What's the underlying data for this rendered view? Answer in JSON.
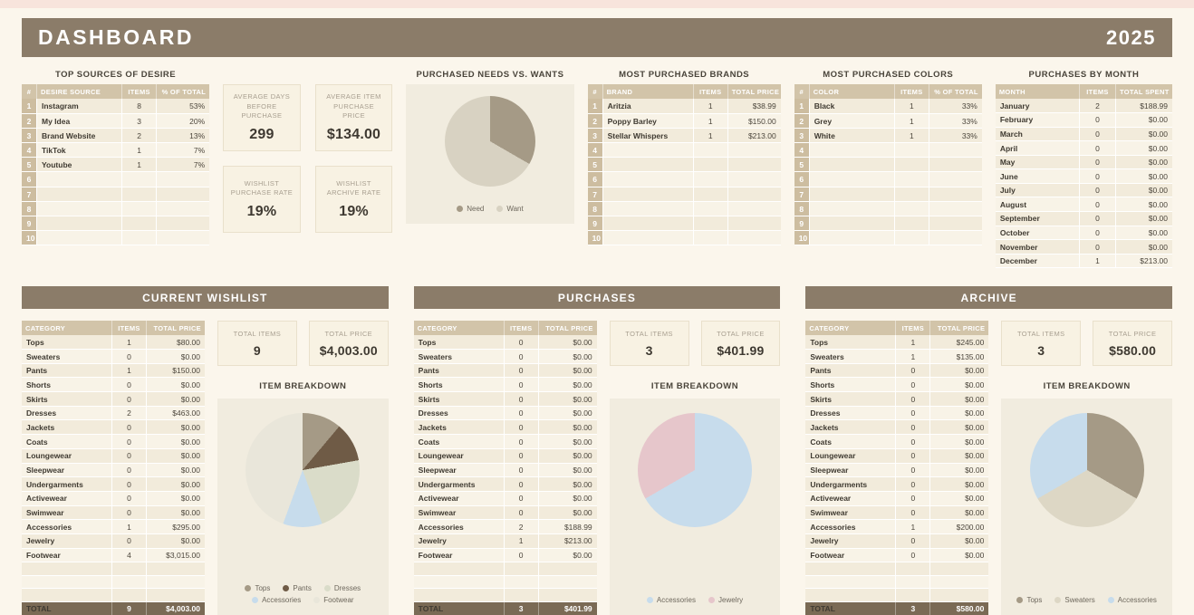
{
  "header": {
    "title": "DASHBOARD",
    "year": "2025"
  },
  "top_sources": {
    "title": "TOP SOURCES OF DESIRE",
    "columns": [
      "#",
      "DESIRE SOURCE",
      "ITEMS",
      "% OF TOTAL"
    ],
    "rows": [
      [
        "1",
        "Instagram",
        "8",
        "53%"
      ],
      [
        "2",
        "My Idea",
        "3",
        "20%"
      ],
      [
        "3",
        "Brand Website",
        "2",
        "13%"
      ],
      [
        "4",
        "TikTok",
        "1",
        "7%"
      ],
      [
        "5",
        "Youtube",
        "1",
        "7%"
      ],
      [
        "6",
        "",
        "",
        ""
      ],
      [
        "7",
        "",
        "",
        ""
      ],
      [
        "8",
        "",
        "",
        ""
      ],
      [
        "9",
        "",
        "",
        ""
      ],
      [
        "10",
        "",
        "",
        ""
      ]
    ]
  },
  "summary_stats": [
    {
      "label": "AVERAGE DAYS BEFORE PURCHASE",
      "value": "299"
    },
    {
      "label": "AVERAGE ITEM PURCHASE PRICE",
      "value": "$134.00"
    },
    {
      "label": "WISHLIST PURCHASE RATE",
      "value": "19%"
    },
    {
      "label": "WISHLIST ARCHIVE RATE",
      "value": "19%"
    }
  ],
  "brands": {
    "title": "MOST PURCHASED BRANDS",
    "columns": [
      "#",
      "BRAND",
      "ITEMS",
      "TOTAL PRICE"
    ],
    "rows": [
      [
        "1",
        "Aritzia",
        "1",
        "$38.99"
      ],
      [
        "2",
        "Poppy Barley",
        "1",
        "$150.00"
      ],
      [
        "3",
        "Stellar Whispers",
        "1",
        "$213.00"
      ],
      [
        "4",
        "",
        "",
        ""
      ],
      [
        "5",
        "",
        "",
        ""
      ],
      [
        "6",
        "",
        "",
        ""
      ],
      [
        "7",
        "",
        "",
        ""
      ],
      [
        "8",
        "",
        "",
        ""
      ],
      [
        "9",
        "",
        "",
        ""
      ],
      [
        "10",
        "",
        "",
        ""
      ]
    ]
  },
  "colors_table": {
    "title": "MOST PURCHASED COLORS",
    "columns": [
      "#",
      "COLOR",
      "ITEMS",
      "% OF TOTAL"
    ],
    "rows": [
      [
        "1",
        "Black",
        "1",
        "33%"
      ],
      [
        "2",
        "Grey",
        "1",
        "33%"
      ],
      [
        "3",
        "White",
        "1",
        "33%"
      ],
      [
        "4",
        "",
        "",
        ""
      ],
      [
        "5",
        "",
        "",
        ""
      ],
      [
        "6",
        "",
        "",
        ""
      ],
      [
        "7",
        "",
        "",
        ""
      ],
      [
        "8",
        "",
        "",
        ""
      ],
      [
        "9",
        "",
        "",
        ""
      ],
      [
        "10",
        "",
        "",
        ""
      ]
    ]
  },
  "months": {
    "title": "PURCHASES BY MONTH",
    "columns": [
      "MONTH",
      "ITEMS",
      "TOTAL SPENT"
    ],
    "rows": [
      [
        "January",
        "2",
        "$188.99"
      ],
      [
        "February",
        "0",
        "$0.00"
      ],
      [
        "March",
        "0",
        "$0.00"
      ],
      [
        "April",
        "0",
        "$0.00"
      ],
      [
        "May",
        "0",
        "$0.00"
      ],
      [
        "June",
        "0",
        "$0.00"
      ],
      [
        "July",
        "0",
        "$0.00"
      ],
      [
        "August",
        "0",
        "$0.00"
      ],
      [
        "September",
        "0",
        "$0.00"
      ],
      [
        "October",
        "0",
        "$0.00"
      ],
      [
        "November",
        "0",
        "$0.00"
      ],
      [
        "December",
        "1",
        "$213.00"
      ]
    ]
  },
  "panels": [
    {
      "title": "CURRENT WISHLIST",
      "columns": [
        "CATEGORY",
        "ITEMS",
        "TOTAL PRICE"
      ],
      "rows": [
        [
          "Tops",
          "1",
          "$80.00"
        ],
        [
          "Sweaters",
          "0",
          "$0.00"
        ],
        [
          "Pants",
          "1",
          "$150.00"
        ],
        [
          "Shorts",
          "0",
          "$0.00"
        ],
        [
          "Skirts",
          "0",
          "$0.00"
        ],
        [
          "Dresses",
          "2",
          "$463.00"
        ],
        [
          "Jackets",
          "0",
          "$0.00"
        ],
        [
          "Coats",
          "0",
          "$0.00"
        ],
        [
          "Loungewear",
          "0",
          "$0.00"
        ],
        [
          "Sleepwear",
          "0",
          "$0.00"
        ],
        [
          "Undergarments",
          "0",
          "$0.00"
        ],
        [
          "Activewear",
          "0",
          "$0.00"
        ],
        [
          "Swimwear",
          "0",
          "$0.00"
        ],
        [
          "Accessories",
          "1",
          "$295.00"
        ],
        [
          "Jewelry",
          "0",
          "$0.00"
        ],
        [
          "Footwear",
          "4",
          "$3,015.00"
        ],
        [
          "",
          "",
          ""
        ],
        [
          "",
          "",
          ""
        ],
        [
          "",
          "",
          ""
        ]
      ],
      "total": [
        "TOTAL",
        "9",
        "$4,003.00"
      ],
      "stats": [
        {
          "label": "TOTAL ITEMS",
          "value": "9"
        },
        {
          "label": "TOTAL PRICE",
          "value": "$4,003.00"
        }
      ],
      "breakdown_title": "ITEM BREAKDOWN"
    },
    {
      "title": "PURCHASES",
      "columns": [
        "CATEGORY",
        "ITEMS",
        "TOTAL PRICE"
      ],
      "rows": [
        [
          "Tops",
          "0",
          "$0.00"
        ],
        [
          "Sweaters",
          "0",
          "$0.00"
        ],
        [
          "Pants",
          "0",
          "$0.00"
        ],
        [
          "Shorts",
          "0",
          "$0.00"
        ],
        [
          "Skirts",
          "0",
          "$0.00"
        ],
        [
          "Dresses",
          "0",
          "$0.00"
        ],
        [
          "Jackets",
          "0",
          "$0.00"
        ],
        [
          "Coats",
          "0",
          "$0.00"
        ],
        [
          "Loungewear",
          "0",
          "$0.00"
        ],
        [
          "Sleepwear",
          "0",
          "$0.00"
        ],
        [
          "Undergarments",
          "0",
          "$0.00"
        ],
        [
          "Activewear",
          "0",
          "$0.00"
        ],
        [
          "Swimwear",
          "0",
          "$0.00"
        ],
        [
          "Accessories",
          "2",
          "$188.99"
        ],
        [
          "Jewelry",
          "1",
          "$213.00"
        ],
        [
          "Footwear",
          "0",
          "$0.00"
        ],
        [
          "",
          "",
          ""
        ],
        [
          "",
          "",
          ""
        ],
        [
          "",
          "",
          ""
        ]
      ],
      "total": [
        "TOTAL",
        "3",
        "$401.99"
      ],
      "stats": [
        {
          "label": "TOTAL ITEMS",
          "value": "3"
        },
        {
          "label": "TOTAL PRICE",
          "value": "$401.99"
        }
      ],
      "breakdown_title": "ITEM BREAKDOWN"
    },
    {
      "title": "ARCHIVE",
      "columns": [
        "CATEGORY",
        "ITEMS",
        "TOTAL PRICE"
      ],
      "rows": [
        [
          "Tops",
          "1",
          "$245.00"
        ],
        [
          "Sweaters",
          "1",
          "$135.00"
        ],
        [
          "Pants",
          "0",
          "$0.00"
        ],
        [
          "Shorts",
          "0",
          "$0.00"
        ],
        [
          "Skirts",
          "0",
          "$0.00"
        ],
        [
          "Dresses",
          "0",
          "$0.00"
        ],
        [
          "Jackets",
          "0",
          "$0.00"
        ],
        [
          "Coats",
          "0",
          "$0.00"
        ],
        [
          "Loungewear",
          "0",
          "$0.00"
        ],
        [
          "Sleepwear",
          "0",
          "$0.00"
        ],
        [
          "Undergarments",
          "0",
          "$0.00"
        ],
        [
          "Activewear",
          "0",
          "$0.00"
        ],
        [
          "Swimwear",
          "0",
          "$0.00"
        ],
        [
          "Accessories",
          "1",
          "$200.00"
        ],
        [
          "Jewelry",
          "0",
          "$0.00"
        ],
        [
          "Footwear",
          "0",
          "$0.00"
        ],
        [
          "",
          "",
          ""
        ],
        [
          "",
          "",
          ""
        ],
        [
          "",
          "",
          ""
        ]
      ],
      "total": [
        "TOTAL",
        "3",
        "$580.00"
      ],
      "stats": [
        {
          "label": "TOTAL ITEMS",
          "value": "3"
        },
        {
          "label": "TOTAL PRICE",
          "value": "$580.00"
        }
      ],
      "breakdown_title": "ITEM BREAKDOWN"
    }
  ],
  "chart_data": [
    {
      "type": "pie",
      "title": "PURCHASED NEEDS VS. WANTS",
      "labels": [
        "Need",
        "Want"
      ],
      "values": [
        1,
        2
      ],
      "percentages": [
        "33%",
        "67%"
      ],
      "colors": [
        "#a59a86",
        "#d8d2c2"
      ],
      "legend_position": "bottom"
    },
    {
      "type": "pie",
      "title": "ITEM BREAKDOWN",
      "panel": "CURRENT WISHLIST",
      "labels": [
        "Tops",
        "Pants",
        "Dresses",
        "Accessories",
        "Footwear"
      ],
      "values": [
        1,
        1,
        2,
        1,
        4
      ],
      "colors": [
        "#a59a86",
        "#6f5b46",
        "#dadcc9",
        "#c7dcec",
        "#e9e6da"
      ],
      "legend_position": "bottom"
    },
    {
      "type": "pie",
      "title": "ITEM BREAKDOWN",
      "panel": "PURCHASES",
      "labels": [
        "Accessories",
        "Jewelry"
      ],
      "values": [
        2,
        1
      ],
      "colors": [
        "#c7dcec",
        "#e6c6cb"
      ],
      "legend_position": "bottom"
    },
    {
      "type": "pie",
      "title": "ITEM BREAKDOWN",
      "panel": "ARCHIVE",
      "labels": [
        "Tops",
        "Sweaters",
        "Accessories"
      ],
      "values": [
        1,
        1,
        1
      ],
      "colors": [
        "#a59a86",
        "#ddd7c5",
        "#c7dcec"
      ],
      "legend_position": "bottom"
    }
  ]
}
